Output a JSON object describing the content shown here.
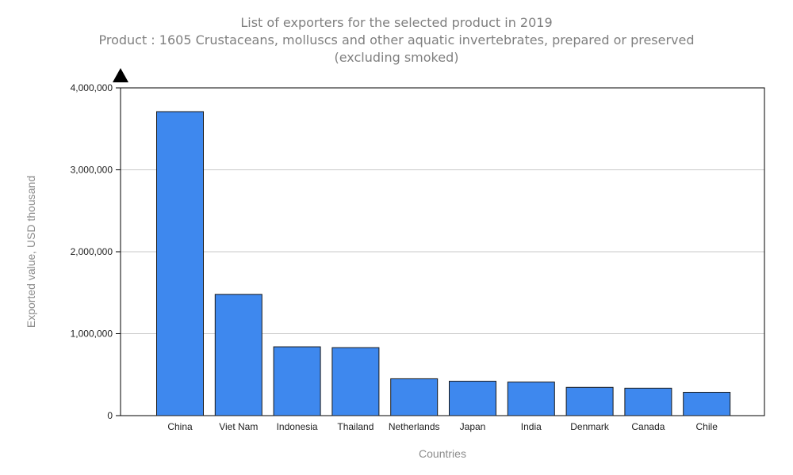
{
  "chart_data": {
    "type": "bar",
    "title": "List of exporters for the selected product in 2019",
    "subtitle_lines": [
      "Product : 1605 Crustaceans, molluscs and other aquatic invertebrates, prepared or preserved",
      "(excluding smoked)"
    ],
    "xlabel": "Countries",
    "ylabel": "Exported value, USD thousand",
    "categories": [
      "China",
      "Viet Nam",
      "Indonesia",
      "Thailand",
      "Netherlands",
      "Japan",
      "India",
      "Denmark",
      "Canada",
      "Chile"
    ],
    "values": [
      3710000,
      1480000,
      840000,
      830000,
      450000,
      420000,
      410000,
      345000,
      335000,
      285000
    ],
    "ylim": [
      0,
      4000000
    ],
    "yticks": [
      0,
      1000000,
      2000000,
      3000000,
      4000000
    ],
    "ytick_labels": [
      "0",
      "1,000,000",
      "2,000,000",
      "3,000,000",
      "4,000,000"
    ],
    "grid": true,
    "legend": "none",
    "bar_color": "#3e88ee"
  }
}
